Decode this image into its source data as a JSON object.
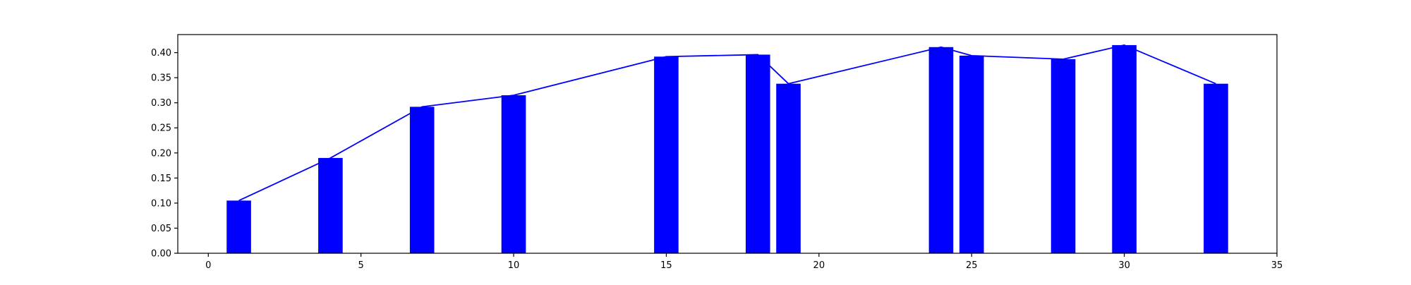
{
  "chart_data": {
    "type": "bar",
    "title": "",
    "xlabel": "",
    "ylabel": "",
    "xlim": [
      -1,
      35
    ],
    "ylim": [
      0,
      0.436
    ],
    "grid": false,
    "x_ticks": [
      "0",
      "5",
      "10",
      "15",
      "20",
      "25",
      "30",
      "35"
    ],
    "y_ticks": [
      "0.00",
      "0.05",
      "0.10",
      "0.15",
      "0.20",
      "0.25",
      "0.30",
      "0.35",
      "0.40"
    ],
    "bar_width": 0.8,
    "series": [
      {
        "type": "bar",
        "x": [
          1,
          4,
          7,
          10,
          15,
          18,
          19,
          24,
          25,
          28,
          30,
          33
        ],
        "values": [
          0.105,
          0.19,
          0.292,
          0.315,
          0.392,
          0.396,
          0.338,
          0.411,
          0.394,
          0.387,
          0.415,
          0.338
        ],
        "color": "#0000ff"
      },
      {
        "type": "line",
        "x": [
          1,
          4,
          7,
          10,
          15,
          18,
          19,
          24,
          25,
          28,
          30,
          33
        ],
        "values": [
          0.105,
          0.19,
          0.292,
          0.315,
          0.392,
          0.396,
          0.338,
          0.411,
          0.394,
          0.387,
          0.415,
          0.338
        ],
        "color": "#0000ff"
      }
    ]
  }
}
